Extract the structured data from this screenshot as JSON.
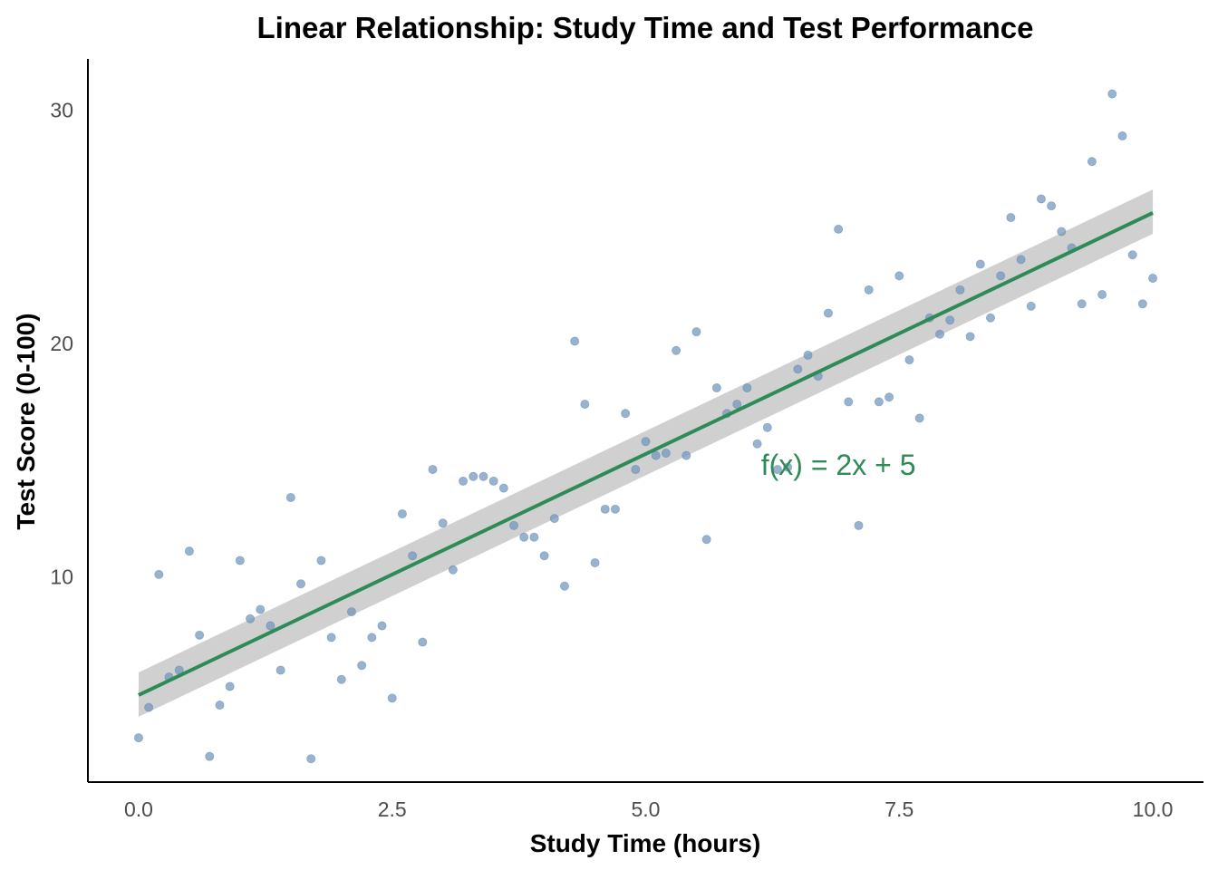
{
  "chart_data": {
    "type": "scatter",
    "title": "Linear Relationship: Study Time and Test Performance",
    "xlabel": "Study Time (hours)",
    "ylabel": "Test Score (0-100)",
    "xlim": [
      -0.5,
      10.5
    ],
    "ylim": [
      1.2,
      32.2
    ],
    "x_ticks": [
      0.0,
      2.5,
      5.0,
      7.5,
      10.0
    ],
    "x_tick_labels": [
      "0.0",
      "2.5",
      "5.0",
      "7.5",
      "10.0"
    ],
    "y_ticks": [
      10,
      20,
      30
    ],
    "y_tick_labels": [
      "10",
      "20",
      "30"
    ],
    "grid": false,
    "annotation": {
      "text": "f(x) = 2x + 5",
      "x": 6.9,
      "y": 14.8
    },
    "colors": {
      "points": "#6f96bd",
      "line": "#2e8b57",
      "band": "#c8c8c8",
      "annotation": "#2e8b57"
    },
    "series": [
      {
        "type": "scatter",
        "x": [
          0.0,
          0.1,
          0.2,
          0.3,
          0.4,
          0.5,
          0.6,
          0.7,
          0.8,
          0.9,
          1.0,
          1.1,
          1.2,
          1.3,
          1.4,
          1.5,
          1.6,
          1.7,
          1.8,
          1.9,
          2.0,
          2.1,
          2.2,
          2.3,
          2.4,
          2.5,
          2.6,
          2.7,
          2.8,
          2.9,
          3.0,
          3.1,
          3.2,
          3.3,
          3.4,
          3.5,
          3.6,
          3.7,
          3.8,
          3.9,
          4.0,
          4.1,
          4.2,
          4.3,
          4.4,
          4.5,
          4.6,
          4.7,
          4.8,
          4.9,
          5.0,
          5.1,
          5.2,
          5.3,
          5.4,
          5.5,
          5.6,
          5.7,
          5.8,
          5.9,
          6.0,
          6.1,
          6.2,
          6.3,
          6.4,
          6.5,
          6.6,
          6.7,
          6.8,
          6.9,
          7.0,
          7.1,
          7.2,
          7.3,
          7.4,
          7.5,
          7.6,
          7.7,
          7.8,
          7.9,
          8.0,
          8.1,
          8.2,
          8.3,
          8.4,
          8.5,
          8.6,
          8.7,
          8.8,
          8.9,
          9.0,
          9.1,
          9.2,
          9.3,
          9.4,
          9.5,
          9.6,
          9.7,
          9.8,
          9.9,
          10.0
        ],
        "y": [
          3.1,
          4.4,
          10.1,
          5.7,
          6.0,
          11.1,
          7.5,
          2.3,
          4.5,
          5.3,
          10.7,
          8.2,
          8.6,
          7.9,
          6.0,
          13.4,
          9.7,
          2.2,
          10.7,
          7.4,
          5.6,
          8.5,
          6.2,
          7.4,
          7.9,
          4.8,
          12.7,
          10.9,
          7.2,
          14.6,
          12.3,
          10.3,
          14.1,
          14.3,
          14.3,
          14.1,
          13.8,
          12.2,
          11.7,
          11.7,
          10.9,
          12.5,
          9.6,
          20.1,
          17.4,
          10.6,
          12.9,
          12.9,
          17.0,
          14.6,
          15.8,
          15.2,
          15.3,
          19.7,
          15.2,
          20.5,
          11.6,
          18.1,
          17.0,
          17.4,
          18.1,
          15.7,
          16.4,
          14.6,
          14.7,
          18.9,
          19.5,
          18.6,
          21.3,
          24.9,
          17.5,
          12.2,
          22.3,
          17.5,
          17.7,
          22.9,
          19.3,
          16.8,
          21.1,
          20.4,
          21.0,
          22.3,
          20.3,
          23.4,
          21.1,
          22.9,
          25.4,
          23.6,
          21.6,
          26.2,
          25.9,
          24.8,
          24.1,
          21.7,
          27.8,
          22.1,
          30.7,
          28.9,
          23.8,
          21.7,
          22.8
        ]
      },
      {
        "type": "line",
        "name": "",
        "fit": {
          "slope": 2.07,
          "intercept": 4.93
        },
        "x": [
          0.0,
          10.0
        ],
        "y": [
          4.93,
          25.6
        ],
        "ci_lower": [
          4.0,
          24.7
        ],
        "ci_upper": [
          5.9,
          26.6
        ]
      }
    ]
  }
}
